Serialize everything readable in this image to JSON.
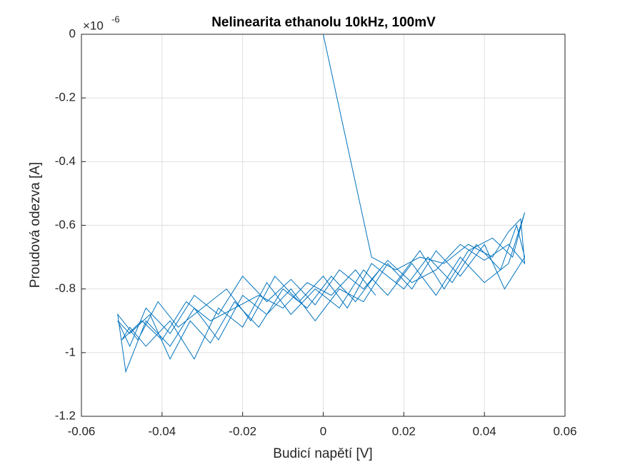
{
  "chart_data": {
    "type": "line",
    "title": "Nelinearita ethanolu 10kHz, 100mV",
    "xlabel": "Budicí napětí [V]",
    "ylabel": "Proudová odezva [A]",
    "y_multiplier": {
      "base": "×10",
      "exponent": "-6"
    },
    "color": "#0072bd",
    "grid": true,
    "xlim": [
      -0.06,
      0.06
    ],
    "ylim": [
      -1.2,
      0
    ],
    "xticks": [
      -0.06,
      -0.04,
      -0.02,
      0,
      0.02,
      0.04,
      0.06
    ],
    "yticks": [
      -1.2,
      -1,
      -0.8,
      -0.6,
      -0.4,
      -0.2,
      0
    ],
    "x": [
      0,
      0.012,
      0.018,
      0.024,
      0.03,
      0.036,
      0.042,
      0.046,
      0.049,
      0.05,
      0.046,
      0.04,
      0.034,
      0.028,
      0.022,
      0.016,
      0.01,
      0.004,
      -0.002,
      -0.008,
      -0.014,
      -0.02,
      -0.026,
      -0.032,
      -0.038,
      -0.044,
      -0.048,
      -0.051,
      -0.048,
      -0.043,
      -0.038,
      -0.033,
      -0.028,
      -0.022,
      -0.016,
      -0.01,
      -0.004,
      0.002,
      0.008,
      0.014,
      0.02,
      0.026,
      0.032,
      0.038,
      0.044,
      0.048,
      0.05,
      0.045,
      0.04,
      0.034,
      0.028,
      0.022,
      0.016,
      0.01,
      0.004,
      -0.002,
      -0.008,
      -0.014,
      -0.02,
      -0.026,
      -0.032,
      -0.038,
      -0.044,
      -0.049,
      -0.051,
      -0.046,
      -0.041,
      -0.036,
      -0.03,
      -0.024,
      -0.018,
      -0.012,
      -0.006,
      0.0,
      0.006,
      0.012,
      0.018,
      0.024,
      0.03,
      0.036,
      0.042,
      0.047,
      0.05,
      0.046,
      0.04,
      0.034,
      0.028,
      0.022,
      0.016,
      0.01,
      0.004,
      -0.002,
      -0.008,
      -0.014,
      -0.02,
      -0.026,
      -0.032,
      -0.038,
      -0.044,
      -0.048,
      -0.05,
      -0.045,
      -0.04,
      -0.034,
      -0.028,
      -0.022,
      -0.016,
      -0.01,
      -0.004,
      0.002,
      0.008,
      0.013
    ],
    "values": [
      0,
      -0.7,
      -0.74,
      -0.7,
      -0.72,
      -0.66,
      -0.7,
      -0.62,
      -0.58,
      -0.72,
      -0.66,
      -0.71,
      -0.66,
      -0.74,
      -0.78,
      -0.71,
      -0.8,
      -0.74,
      -0.85,
      -0.77,
      -0.84,
      -0.76,
      -0.88,
      -0.82,
      -0.94,
      -0.86,
      -0.98,
      -0.9,
      -0.94,
      -0.88,
      -1.02,
      -0.9,
      -0.97,
      -0.84,
      -0.92,
      -0.8,
      -0.86,
      -0.76,
      -0.84,
      -0.74,
      -0.8,
      -0.7,
      -0.78,
      -0.66,
      -0.74,
      -0.6,
      -0.7,
      -0.8,
      -0.66,
      -0.76,
      -0.68,
      -0.8,
      -0.72,
      -0.84,
      -0.8,
      -0.9,
      -0.8,
      -0.88,
      -0.82,
      -0.96,
      -0.86,
      -0.98,
      -0.9,
      -1.06,
      -0.88,
      -0.96,
      -0.84,
      -0.92,
      -0.86,
      -0.8,
      -0.9,
      -0.76,
      -0.84,
      -0.76,
      -0.86,
      -0.72,
      -0.78,
      -0.68,
      -0.8,
      -0.68,
      -0.64,
      -0.7,
      -0.56,
      -0.72,
      -0.78,
      -0.7,
      -0.82,
      -0.72,
      -0.82,
      -0.74,
      -0.86,
      -0.8,
      -0.88,
      -0.78,
      -0.92,
      -0.86,
      -1.02,
      -0.9,
      -0.98,
      -0.92,
      -0.96,
      -0.9,
      -0.96,
      -0.84,
      -0.9,
      -0.86,
      -0.82,
      -0.86,
      -0.78,
      -0.82,
      -0.74,
      -0.82
    ]
  }
}
